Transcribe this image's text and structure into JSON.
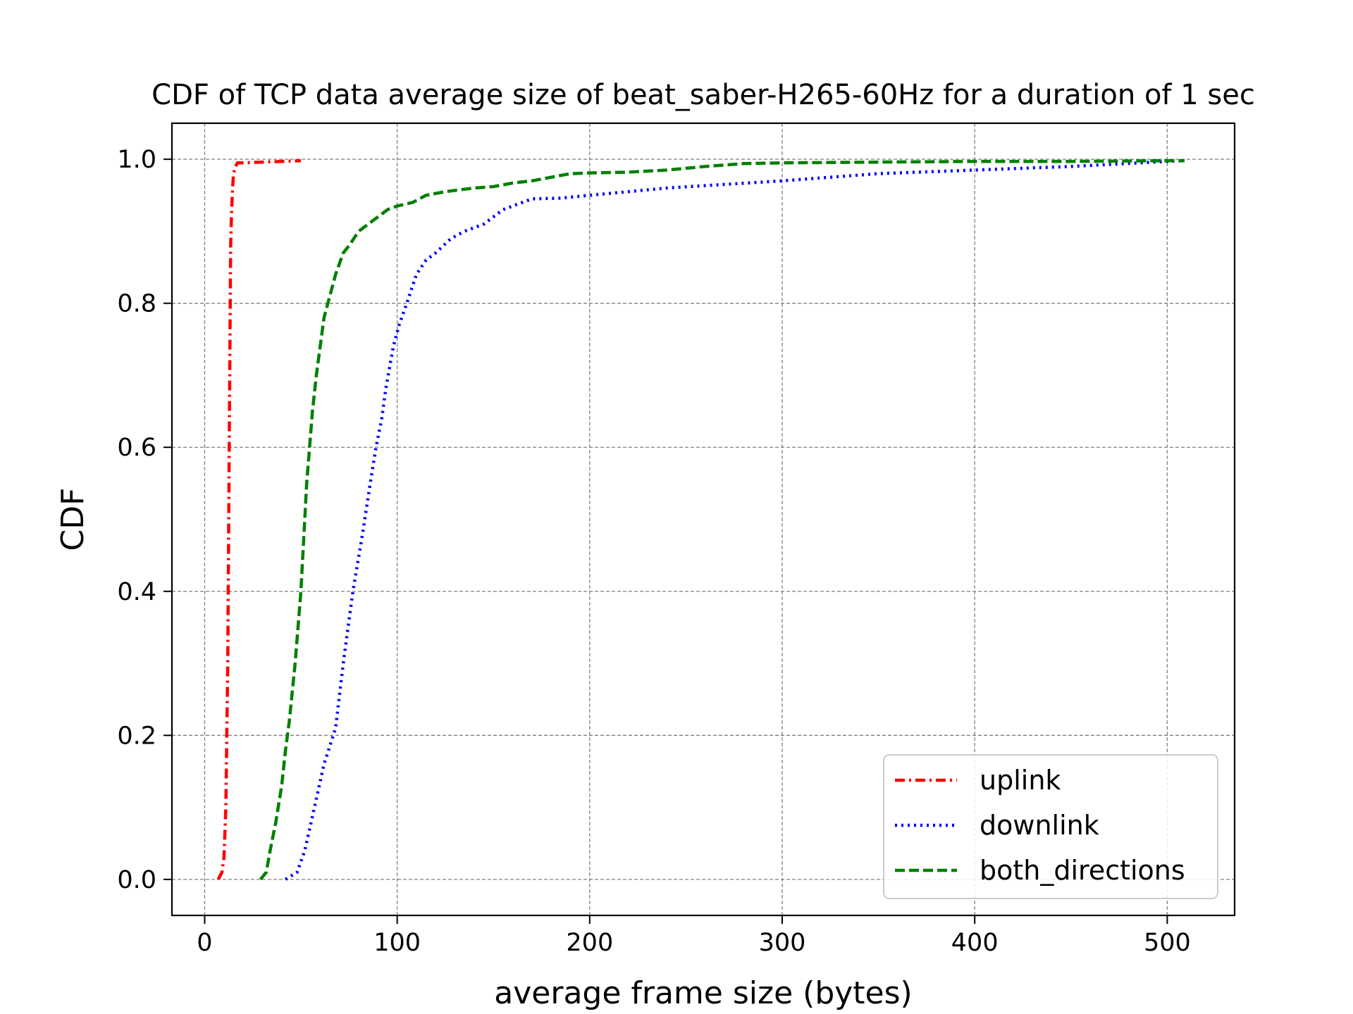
{
  "chart_data": {
    "type": "line",
    "title": "CDF of TCP data average size of beat_saber-H265-60Hz for a duration of 1 sec",
    "xlabel": "average frame size (bytes)",
    "ylabel": "CDF",
    "xlim": [
      -17,
      535
    ],
    "ylim": [
      -0.05,
      1.05
    ],
    "xticks": [
      0,
      100,
      200,
      300,
      400,
      500
    ],
    "yticks": [
      0.0,
      0.2,
      0.4,
      0.6,
      0.8,
      1.0
    ],
    "xtick_labels": [
      "0",
      "100",
      "200",
      "300",
      "400",
      "500"
    ],
    "ytick_labels": [
      "0.0",
      "0.2",
      "0.4",
      "0.6",
      "0.8",
      "1.0"
    ],
    "grid": true,
    "legend_position": "lower-right",
    "series": [
      {
        "name": "uplink",
        "color": "#ff0000",
        "style": "dashdot",
        "x": [
          7,
          9,
          10,
          11,
          12,
          12.5,
          13,
          13.5,
          14,
          14.5,
          15,
          16,
          17,
          20,
          30,
          40,
          50
        ],
        "y": [
          0.0,
          0.01,
          0.03,
          0.1,
          0.3,
          0.5,
          0.7,
          0.88,
          0.93,
          0.96,
          0.98,
          0.99,
          0.995,
          0.995,
          0.996,
          0.997,
          0.998
        ]
      },
      {
        "name": "downlink",
        "color": "#0000ff",
        "style": "dotted",
        "x": [
          42,
          48,
          52,
          57,
          62,
          68,
          72,
          77,
          82,
          86,
          89,
          92,
          94,
          96,
          98,
          101,
          105,
          110,
          115,
          120,
          128,
          135,
          145,
          155,
          165,
          170,
          185,
          200,
          220,
          240,
          270,
          300,
          350,
          400,
          450,
          500,
          509
        ],
        "y": [
          0.0,
          0.01,
          0.04,
          0.1,
          0.16,
          0.21,
          0.3,
          0.4,
          0.48,
          0.55,
          0.6,
          0.64,
          0.68,
          0.71,
          0.74,
          0.77,
          0.8,
          0.84,
          0.86,
          0.87,
          0.89,
          0.9,
          0.91,
          0.93,
          0.94,
          0.945,
          0.946,
          0.95,
          0.955,
          0.96,
          0.965,
          0.97,
          0.98,
          0.985,
          0.99,
          0.997,
          0.998
        ]
      },
      {
        "name": "both_directions",
        "color": "#008000",
        "style": "dashed",
        "x": [
          29,
          32,
          34,
          37,
          40,
          42,
          44,
          47,
          50,
          53,
          56,
          58,
          62,
          65,
          68,
          72,
          75,
          80,
          85,
          90,
          95,
          100,
          108,
          115,
          125,
          140,
          150,
          160,
          170,
          180,
          190,
          200,
          220,
          240,
          260,
          280,
          300,
          350,
          400,
          450,
          500,
          509
        ],
        "y": [
          0.0,
          0.01,
          0.04,
          0.08,
          0.13,
          0.18,
          0.22,
          0.3,
          0.4,
          0.55,
          0.65,
          0.7,
          0.78,
          0.81,
          0.84,
          0.87,
          0.88,
          0.9,
          0.91,
          0.92,
          0.93,
          0.935,
          0.94,
          0.95,
          0.955,
          0.96,
          0.962,
          0.967,
          0.97,
          0.975,
          0.98,
          0.981,
          0.982,
          0.985,
          0.99,
          0.994,
          0.995,
          0.996,
          0.997,
          0.997,
          0.998,
          0.998
        ]
      }
    ]
  }
}
